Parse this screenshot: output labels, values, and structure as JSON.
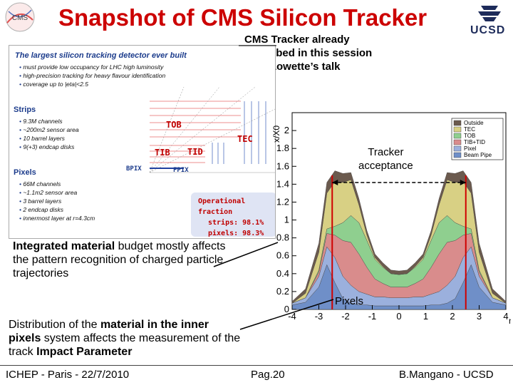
{
  "title": "Snapshot of CMS Silicon Tracker",
  "logos": {
    "cms": "cms-logo",
    "ucsd_text": "UCSD"
  },
  "note": [
    "CMS Tracker already",
    "described in this session",
    "by S.Lowette’s talk"
  ],
  "panel": {
    "heading": "The largest silicon tracking detector ever built",
    "intro_items": [
      "must provide low occupancy for LHC high luminosity",
      "high-precision tracking for heavy flavour identification",
      "coverage up to |eta|<2.5"
    ],
    "strips_title": "Strips",
    "strips_items": [
      "9.3M channels",
      "~200m2 sensor area",
      "10 barrel layers",
      "9(+3) endcap disks"
    ],
    "pixels_title": "Pixels",
    "pixels_items": [
      "66M channels",
      "~1.1m2 sensor area",
      "3 barrel layers",
      "2 endcap disks",
      "innermost layer at r=4.3cm"
    ],
    "detectors": {
      "tob": "TOB",
      "tib": "TIB",
      "tid": "TID",
      "tec": "TEC",
      "bpix": "BPIX",
      "fpix": "FPIX"
    },
    "op_title": "Operational fraction",
    "op_strips": "strips:  98.1%",
    "op_pixels": "pixels:  98.3%"
  },
  "chart_data": {
    "type": "area",
    "ylabel": "x/X0",
    "xlabel": "η",
    "xlim": [
      -4,
      4
    ],
    "ylim": [
      0,
      2.2
    ],
    "x_ticks": [
      "-4",
      "-3",
      "-2",
      "-1",
      "0",
      "1",
      "2",
      "3",
      "4"
    ],
    "y_ticks": [
      "0",
      "0.2",
      "0.4",
      "0.6",
      "0.8",
      "1",
      "1.2",
      "1.4",
      "1.6",
      "1.8",
      "2"
    ],
    "x": [
      -4,
      -3.5,
      -3,
      -2.7,
      -2.4,
      -2.1,
      -1.8,
      -1.5,
      -1.2,
      -0.9,
      -0.6,
      -0.3,
      0,
      0.3,
      0.6,
      0.9,
      1.2,
      1.5,
      1.8,
      2.1,
      2.4,
      2.7,
      3,
      3.5,
      4
    ],
    "series": [
      {
        "name": "Beam Pipe",
        "color": "#6f8fc8",
        "values": [
          0.05,
          0.08,
          0.25,
          0.5,
          0.3,
          0.12,
          0.07,
          0.05,
          0.05,
          0.04,
          0.04,
          0.04,
          0.04,
          0.04,
          0.04,
          0.04,
          0.05,
          0.05,
          0.07,
          0.12,
          0.3,
          0.5,
          0.25,
          0.08,
          0.05
        ]
      },
      {
        "name": "Pixel",
        "color": "#9bb0dd",
        "values": [
          0.02,
          0.05,
          0.12,
          0.2,
          0.28,
          0.25,
          0.2,
          0.15,
          0.12,
          0.1,
          0.1,
          0.09,
          0.09,
          0.09,
          0.1,
          0.1,
          0.12,
          0.15,
          0.2,
          0.25,
          0.28,
          0.2,
          0.12,
          0.05,
          0.02
        ]
      },
      {
        "name": "TIB+TID",
        "color": "#d98c8c",
        "values": [
          0.0,
          0.0,
          0.05,
          0.15,
          0.25,
          0.4,
          0.48,
          0.42,
          0.3,
          0.2,
          0.15,
          0.12,
          0.12,
          0.12,
          0.15,
          0.2,
          0.3,
          0.42,
          0.48,
          0.4,
          0.25,
          0.15,
          0.05,
          0.0,
          0.0
        ]
      },
      {
        "name": "TOB",
        "color": "#8fcf8f",
        "values": [
          0.0,
          0.0,
          0.02,
          0.05,
          0.1,
          0.2,
          0.3,
          0.35,
          0.3,
          0.22,
          0.18,
          0.15,
          0.14,
          0.15,
          0.18,
          0.22,
          0.3,
          0.35,
          0.3,
          0.2,
          0.1,
          0.05,
          0.02,
          0.0,
          0.0
        ]
      },
      {
        "name": "TEC",
        "color": "#d8d084",
        "values": [
          0.0,
          0.05,
          0.2,
          0.4,
          0.5,
          0.45,
          0.4,
          0.2,
          0.06,
          0.02,
          0.01,
          0.0,
          0.0,
          0.0,
          0.01,
          0.02,
          0.06,
          0.2,
          0.4,
          0.45,
          0.5,
          0.4,
          0.2,
          0.05,
          0.0
        ]
      },
      {
        "name": "Outside",
        "color": "#6b5a4e",
        "values": [
          0.02,
          0.05,
          0.1,
          0.12,
          0.12,
          0.1,
          0.08,
          0.07,
          0.05,
          0.04,
          0.04,
          0.04,
          0.04,
          0.04,
          0.04,
          0.04,
          0.05,
          0.07,
          0.08,
          0.1,
          0.12,
          0.12,
          0.1,
          0.05,
          0.02
        ]
      }
    ],
    "legend": "top-right",
    "legend_entries": [
      "Outside",
      "TEC",
      "TOB",
      "TIB+TID",
      "Pixel",
      "Beam Pipe"
    ],
    "acceptance_lines": [
      -2.5,
      2.5
    ],
    "annotations": {
      "acceptance": [
        "Tracker",
        "acceptance"
      ],
      "pixels": "Pixels"
    }
  },
  "body": {
    "p1_bold": "Integrated material",
    "p1_rest": " budget mostly affects the pattern recognition of charged particle trajectories",
    "p2_a": "Distribution of the ",
    "p2_b": "material in the inner pixels",
    "p2_c": " system affects the measurement of the track ",
    "p2_d": "Impact Parameter"
  },
  "footer": {
    "left": "ICHEP - Paris - 22/7/2010",
    "center": "Pag.20",
    "right": "B.Mangano - UCSD"
  }
}
